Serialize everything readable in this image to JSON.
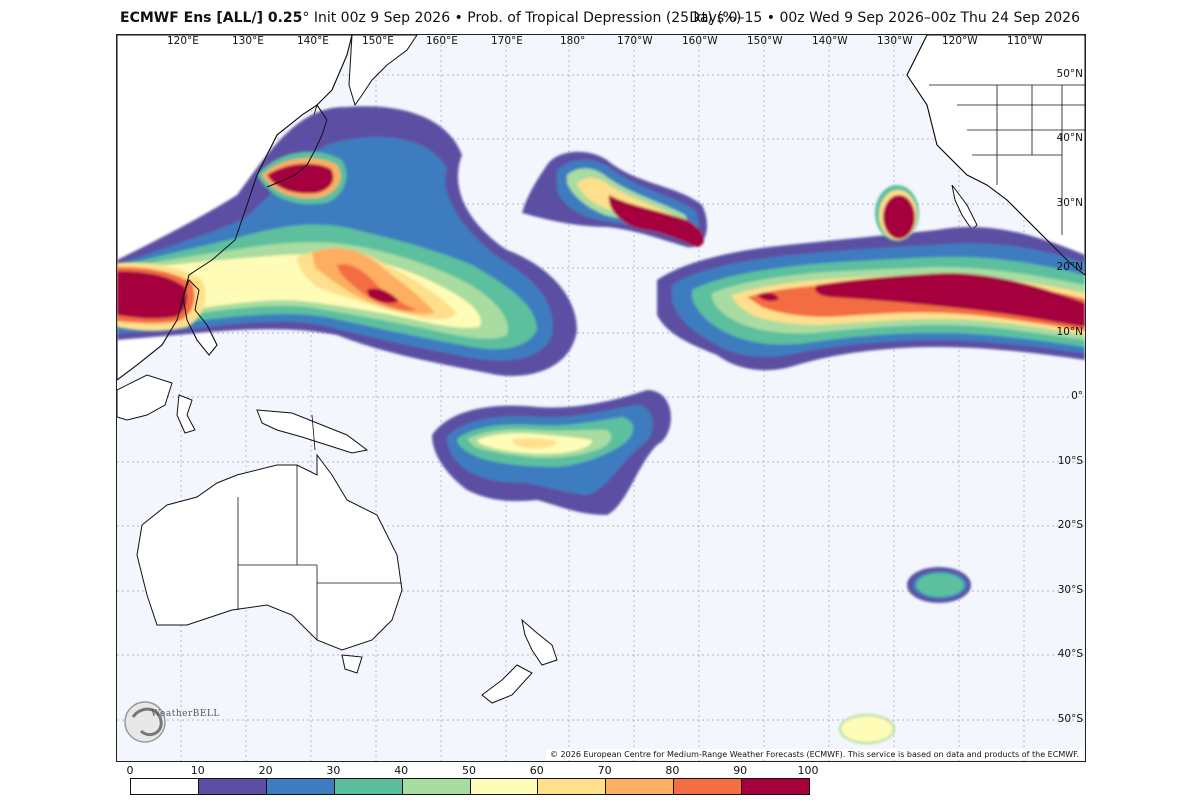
{
  "header": {
    "model": "ECMWF Ens [ALL/] 0.25",
    "init": "° Init 00z 9 Sep 2026 • Prob. of Tropical Depression (25 kt) (%)",
    "valid": "Days 0–15 • 00z Wed 9 Sep 2026–00z Thu 24 Sep 2026"
  },
  "map": {
    "lon_labels": [
      "120°E",
      "130°E",
      "140°E",
      "150°E",
      "160°E",
      "170°E",
      "180°",
      "170°W",
      "160°W",
      "150°W",
      "140°W",
      "130°W",
      "120°W",
      "110°W"
    ],
    "lat_labels": [
      "50°N",
      "40°N",
      "30°N",
      "20°N",
      "10°N",
      "0°",
      "10°S",
      "20°S",
      "30°S",
      "40°S",
      "50°S"
    ],
    "ocean_color": "#f3f7fd",
    "land_color": "#ffffff"
  },
  "colorbar": {
    "ticks": [
      "0",
      "10",
      "20",
      "30",
      "40",
      "50",
      "60",
      "70",
      "80",
      "90",
      "100"
    ],
    "colors": [
      "#ffffff",
      "#5b4fa3",
      "#3d7dbf",
      "#5bbf9e",
      "#a8dca0",
      "#fefcb6",
      "#fedf8c",
      "#fdae61",
      "#f46d43",
      "#a5003c"
    ]
  },
  "branding": {
    "logo": "WeatherBELL",
    "copyright": "© 2026 European Centre for Medium-Range Weather Forecasts (ECMWF). This service is based on data and products of the ECMWF."
  }
}
